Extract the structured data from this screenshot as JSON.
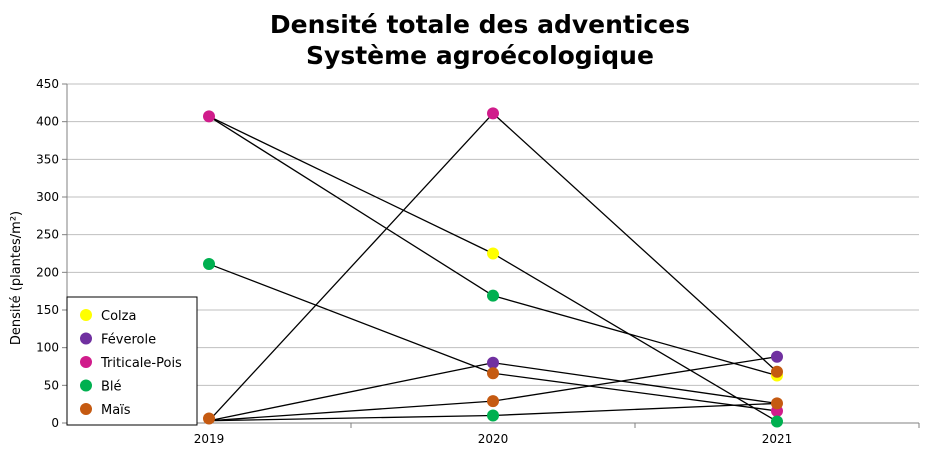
{
  "chart_data": {
    "type": "scatter",
    "title_lines": [
      "Densité totale des adventices",
      "Système agroécologique"
    ],
    "ylabel": "Densité (plantes/m²)",
    "xlabel": "",
    "x": [
      "2019",
      "2020",
      "2021"
    ],
    "ylim": [
      0,
      450
    ],
    "yticks": [
      "0",
      "50",
      "100",
      "150",
      "200",
      "250",
      "300",
      "350",
      "400",
      "450"
    ],
    "grid": "horizontal",
    "legend_position": "bottom-left",
    "series": [
      {
        "name": "Colza",
        "color": "#ffff00",
        "points": [
          {
            "x": "2020",
            "y": 225
          },
          {
            "x": "2021",
            "y": 63
          }
        ]
      },
      {
        "name": "Féverole",
        "color": "#7030a0",
        "points": [
          {
            "x": "2020",
            "y": 80
          },
          {
            "x": "2021",
            "y": 88
          }
        ]
      },
      {
        "name": "Triticale-Pois",
        "color": "#d01c8b",
        "points": [
          {
            "x": "2019",
            "y": 407
          },
          {
            "x": "2020",
            "y": 411
          },
          {
            "x": "2021",
            "y": 16
          }
        ]
      },
      {
        "name": "Blé",
        "color": "#00b050",
        "points": [
          {
            "x": "2019",
            "y": 211
          },
          {
            "x": "2020",
            "y": 169
          },
          {
            "x": "2020",
            "y": 10
          },
          {
            "x": "2021",
            "y": 2
          }
        ]
      },
      {
        "name": "Maïs",
        "color": "#c55a11",
        "points": [
          {
            "x": "2019",
            "y": 6
          },
          {
            "x": "2020",
            "y": 66
          },
          {
            "x": "2020",
            "y": 29
          },
          {
            "x": "2021",
            "y": 68
          },
          {
            "x": "2021",
            "y": 26
          }
        ]
      }
    ],
    "lines": [
      {
        "from": {
          "x": "2019",
          "y": 407
        },
        "to": {
          "x": "2020",
          "y": 225
        }
      },
      {
        "from": {
          "x": "2020",
          "y": 225
        },
        "to": {
          "x": "2021",
          "y": 2
        }
      },
      {
        "from": {
          "x": "2019",
          "y": 407
        },
        "to": {
          "x": "2020",
          "y": 169
        }
      },
      {
        "from": {
          "x": "2020",
          "y": 169
        },
        "to": {
          "x": "2021",
          "y": 63
        }
      },
      {
        "from": {
          "x": "2019",
          "y": 211
        },
        "to": {
          "x": "2020",
          "y": 66
        }
      },
      {
        "from": {
          "x": "2020",
          "y": 66
        },
        "to": {
          "x": "2021",
          "y": 16
        }
      },
      {
        "from": {
          "x": "2019",
          "y": 3
        },
        "to": {
          "x": "2020",
          "y": 411
        }
      },
      {
        "from": {
          "x": "2020",
          "y": 411
        },
        "to": {
          "x": "2021",
          "y": 68
        }
      },
      {
        "from": {
          "x": "2019",
          "y": 3
        },
        "to": {
          "x": "2020",
          "y": 80
        }
      },
      {
        "from": {
          "x": "2020",
          "y": 80
        },
        "to": {
          "x": "2021",
          "y": 26
        }
      },
      {
        "from": {
          "x": "2019",
          "y": 3
        },
        "to": {
          "x": "2020",
          "y": 29
        }
      },
      {
        "from": {
          "x": "2020",
          "y": 29
        },
        "to": {
          "x": "2021",
          "y": 88
        }
      },
      {
        "from": {
          "x": "2019",
          "y": 3
        },
        "to": {
          "x": "2020",
          "y": 10
        }
      },
      {
        "from": {
          "x": "2020",
          "y": 10
        },
        "to": {
          "x": "2021",
          "y": 26
        }
      }
    ]
  }
}
